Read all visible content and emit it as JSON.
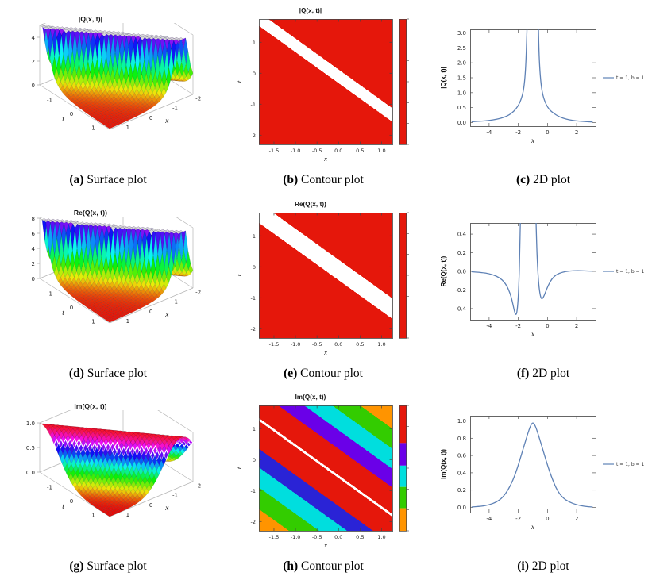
{
  "page": {
    "background": "#ffffff",
    "figure_type": "3x3 panel figure of soliton solution plots"
  },
  "chart_data": [
    {
      "id": "a",
      "type": "surface3d",
      "title": "|Q(x, t)|",
      "x_label": "x",
      "t_label": "t",
      "x_range": [
        -2.2,
        1.4
      ],
      "t_range": [
        -1.6,
        1.6
      ],
      "x_ticks": [
        -2,
        -1,
        0,
        1
      ],
      "t_ticks": [
        -1,
        0,
        1
      ],
      "z_ticks": [
        0,
        2,
        4
      ],
      "z_tick_decimals": 0,
      "ridge_line": "x + t = -0.1",
      "model": {
        "profile": "spike",
        "amp": 0.55,
        "eps": 0.06,
        "clip": 5,
        "c0": -0.1,
        "zs": 15,
        "hue_cycle": false
      },
      "colormap": "rainbow low=red high=violet, clipped top gray",
      "caption": {
        "tag": "(a)",
        "label": "Surface plot"
      }
    },
    {
      "id": "b",
      "type": "contour",
      "title": "|Q(x, t)|",
      "x_label": "x",
      "t_label": "t",
      "x_range": [
        -1.85,
        1.25
      ],
      "t_range": [
        -2.3,
        1.75
      ],
      "x_ticks": [
        -1.5,
        -1.0,
        -0.5,
        0.0,
        0.5,
        1.0
      ],
      "x_tick_decimals": 1,
      "t_ticks": [
        -2,
        -1,
        0,
        1
      ],
      "field": {
        "c0": -0.1,
        "white_half_width": 0.22,
        "base_color": "#e5170b"
      },
      "colorbar": {
        "type": "solid",
        "color": "#e5170b"
      },
      "caption": {
        "tag": "(b)",
        "label": "Contour plot"
      }
    },
    {
      "id": "c",
      "type": "line",
      "title": "",
      "x_label": "x",
      "y_label": "|Q(x, t)|",
      "x_range": [
        -5.3,
        3.3
      ],
      "y_range": [
        -0.12,
        3.12
      ],
      "x_ticks": [
        -4,
        -2,
        0,
        2
      ],
      "y_ticks": [
        0.0,
        0.5,
        1.0,
        1.5,
        2.0,
        2.5,
        3.0
      ],
      "y_tick_decimals": 1,
      "series_color": "#5e81b5",
      "legend": {
        "label": "t = 1, b = 1"
      },
      "segments": [
        [
          [
            -5.2,
            0.03
          ],
          [
            -4.5,
            0.05
          ],
          [
            -4,
            0.07
          ],
          [
            -3.5,
            0.11
          ],
          [
            -3,
            0.17
          ],
          [
            -2.6,
            0.26
          ],
          [
            -2.3,
            0.38
          ],
          [
            -2.0,
            0.56
          ],
          [
            -1.8,
            0.78
          ],
          [
            -1.65,
            1.05
          ],
          [
            -1.55,
            1.45
          ],
          [
            -1.48,
            2.0
          ],
          [
            -1.43,
            2.7
          ],
          [
            -1.4,
            3.2
          ]
        ],
        [
          [
            -0.62,
            3.2
          ],
          [
            -0.6,
            2.7
          ],
          [
            -0.56,
            2.1
          ],
          [
            -0.5,
            1.6
          ],
          [
            -0.42,
            1.2
          ],
          [
            -0.32,
            0.92
          ],
          [
            -0.18,
            0.7
          ],
          [
            0,
            0.52
          ],
          [
            0.2,
            0.4
          ],
          [
            0.45,
            0.3
          ],
          [
            0.75,
            0.21
          ],
          [
            1.1,
            0.14
          ],
          [
            1.5,
            0.09
          ],
          [
            2,
            0.055
          ],
          [
            2.5,
            0.035
          ],
          [
            3.1,
            0.02
          ]
        ]
      ],
      "caption": {
        "tag": "(c)",
        "label": "2D plot"
      }
    },
    {
      "id": "d",
      "type": "surface3d",
      "title": "Re(Q(x, t))",
      "x_label": "x",
      "t_label": "t",
      "x_range": [
        -2.2,
        1.4
      ],
      "t_range": [
        -1.6,
        1.6
      ],
      "x_ticks": [
        -2,
        -1,
        0,
        1
      ],
      "t_ticks": [
        -1,
        0,
        1
      ],
      "z_ticks": [
        0,
        2,
        4,
        6,
        8
      ],
      "z_tick_decimals": 0,
      "ridge_line": "x + t = -0.1",
      "model": {
        "profile": "spike",
        "amp": 0.7,
        "eps": 0.05,
        "clip": 8,
        "c0": -0.1,
        "zs": 9.5,
        "hue_cycle": false
      },
      "colormap": "rainbow low=red high=violet, clipped top gray",
      "caption": {
        "tag": "(d)",
        "label": "Surface plot"
      }
    },
    {
      "id": "e",
      "type": "contour",
      "title": "Re(Q(x, t))",
      "x_label": "x",
      "t_label": "t",
      "x_range": [
        -1.85,
        1.25
      ],
      "t_range": [
        -2.3,
        1.75
      ],
      "x_ticks": [
        -1.5,
        -1.0,
        -0.5,
        0.0,
        0.5,
        1.0
      ],
      "x_tick_decimals": 1,
      "t_ticks": [
        -2,
        -1,
        0,
        1
      ],
      "field": {
        "c0": -0.1,
        "white_half_width": 0.33,
        "base_color": "#e5170b"
      },
      "colorbar": {
        "type": "solid",
        "color": "#e5170b"
      },
      "caption": {
        "tag": "(e)",
        "label": "Contour plot"
      }
    },
    {
      "id": "f",
      "type": "line",
      "title": "",
      "x_label": "x",
      "y_label": "Re(Q(x, t))",
      "x_range": [
        -5.3,
        3.3
      ],
      "y_range": [
        -0.52,
        0.52
      ],
      "x_ticks": [
        -4,
        -2,
        0,
        2
      ],
      "y_ticks": [
        -0.4,
        -0.2,
        0.0,
        0.2,
        0.4
      ],
      "y_tick_decimals": 1,
      "series_color": "#5e81b5",
      "legend": {
        "label": "t = 1, b = 1"
      },
      "segments": [
        [
          [
            -5.2,
            -0.004
          ],
          [
            -4.5,
            -0.012
          ],
          [
            -4,
            -0.025
          ],
          [
            -3.5,
            -0.05
          ],
          [
            -3.1,
            -0.09
          ],
          [
            -2.8,
            -0.15
          ],
          [
            -2.55,
            -0.24
          ],
          [
            -2.4,
            -0.33
          ],
          [
            -2.28,
            -0.42
          ],
          [
            -2.18,
            -0.47
          ],
          [
            -2.1,
            -0.45
          ],
          [
            -2.02,
            -0.33
          ],
          [
            -1.95,
            -0.1
          ],
          [
            -1.9,
            0.2
          ],
          [
            -1.86,
            0.52
          ]
        ],
        [
          [
            -0.78,
            0.52
          ],
          [
            -0.74,
            0.28
          ],
          [
            -0.68,
            0.05
          ],
          [
            -0.6,
            -0.14
          ],
          [
            -0.5,
            -0.26
          ],
          [
            -0.4,
            -0.3
          ],
          [
            -0.28,
            -0.28
          ],
          [
            -0.15,
            -0.23
          ],
          [
            0.05,
            -0.15
          ],
          [
            0.3,
            -0.08
          ],
          [
            0.6,
            -0.035
          ],
          [
            1.0,
            -0.01
          ],
          [
            1.5,
            0.005
          ],
          [
            2.1,
            0.008
          ],
          [
            2.6,
            0.005
          ],
          [
            3.1,
            0.002
          ]
        ]
      ],
      "caption": {
        "tag": "(f)",
        "label": "2D plot"
      }
    },
    {
      "id": "g",
      "type": "surface3d",
      "title": "Im(Q(x, t))",
      "x_label": "x",
      "t_label": "t",
      "x_range": [
        -2.2,
        1.4
      ],
      "t_range": [
        -1.6,
        1.6
      ],
      "x_ticks": [
        -2,
        -1,
        0,
        1
      ],
      "t_ticks": [
        -1,
        0,
        1
      ],
      "z_ticks": [
        0.0,
        0.5,
        1.0
      ],
      "z_tick_decimals": 1,
      "ridge_line": "x + t = -0.1",
      "model": {
        "profile": "bump",
        "width": 1.1,
        "clip": 1,
        "c0": -0.1,
        "zs": 62,
        "hue_cycle": true,
        "white_lines": [
          -0.55,
          0.55
        ]
      },
      "colormap": "cyclic rainbow, crest red with white contour lines",
      "caption": {
        "tag": "(g)",
        "label": "Surface plot"
      }
    },
    {
      "id": "h",
      "type": "contour",
      "title": "Im(Q(x, t))",
      "x_label": "x",
      "t_label": "t",
      "x_range": [
        -1.85,
        1.25
      ],
      "t_range": [
        -2.3,
        1.75
      ],
      "x_ticks": [
        -1.5,
        -1.0,
        -0.5,
        0.0,
        0.5,
        1.0
      ],
      "x_tick_decimals": 1,
      "t_ticks": [
        -2,
        -1,
        0,
        1
      ],
      "field": {
        "c0": -0.55,
        "white_line_half_width": 0.045,
        "bands": [
          {
            "upto": -2.9,
            "color": "#ff9400"
          },
          {
            "upto": -2.2,
            "color": "#33cc00"
          },
          {
            "upto": -1.55,
            "color": "#00dede"
          },
          {
            "upto": -0.95,
            "color": "#2a23d6"
          },
          {
            "upto": 0.9,
            "color": "#e5170b"
          },
          {
            "upto": 1.5,
            "color": "#6a00e8"
          },
          {
            "upto": 2.15,
            "color": "#00dede"
          },
          {
            "upto": 2.8,
            "color": "#33cc00"
          },
          {
            "upto": 99,
            "color": "#ff9400"
          }
        ]
      },
      "colorbar": {
        "type": "segments",
        "segments": [
          {
            "color": "#e5170b",
            "frac": 0.3
          },
          {
            "color": "#6a00e8",
            "frac": 0.18
          },
          {
            "color": "#00dede",
            "frac": 0.17
          },
          {
            "color": "#33cc00",
            "frac": 0.17
          },
          {
            "color": "#ff9400",
            "frac": 0.18
          }
        ]
      },
      "caption": {
        "tag": "(h)",
        "label": "Contour plot"
      }
    },
    {
      "id": "i",
      "type": "line",
      "title": "",
      "x_label": "x",
      "y_label": "Im(Q(x, t))",
      "x_range": [
        -5.3,
        3.3
      ],
      "y_range": [
        -0.06,
        1.06
      ],
      "x_ticks": [
        -4,
        -2,
        0,
        2
      ],
      "y_ticks": [
        0.0,
        0.2,
        0.4,
        0.6,
        0.8,
        1.0
      ],
      "y_tick_decimals": 1,
      "series_color": "#5e81b5",
      "legend": {
        "label": "t = 1, b = 1"
      },
      "segments": [
        [
          [
            -5.2,
            0.004
          ],
          [
            -4.5,
            0.012
          ],
          [
            -4,
            0.03
          ],
          [
            -3.5,
            0.06
          ],
          [
            -3.1,
            0.11
          ],
          [
            -2.7,
            0.2
          ],
          [
            -2.35,
            0.32
          ],
          [
            -2.05,
            0.46
          ],
          [
            -1.75,
            0.63
          ],
          [
            -1.5,
            0.77
          ],
          [
            -1.3,
            0.88
          ],
          [
            -1.15,
            0.95
          ],
          [
            -1.0,
            0.985
          ],
          [
            -0.85,
            0.95
          ],
          [
            -0.7,
            0.88
          ],
          [
            -0.5,
            0.77
          ],
          [
            -0.25,
            0.63
          ],
          [
            0.05,
            0.46
          ],
          [
            0.35,
            0.32
          ],
          [
            0.65,
            0.2
          ],
          [
            1.05,
            0.11
          ],
          [
            1.5,
            0.06
          ],
          [
            2,
            0.03
          ],
          [
            2.5,
            0.012
          ],
          [
            3.1,
            0.004
          ]
        ]
      ],
      "caption": {
        "tag": "(i)",
        "label": "2D plot"
      }
    }
  ]
}
